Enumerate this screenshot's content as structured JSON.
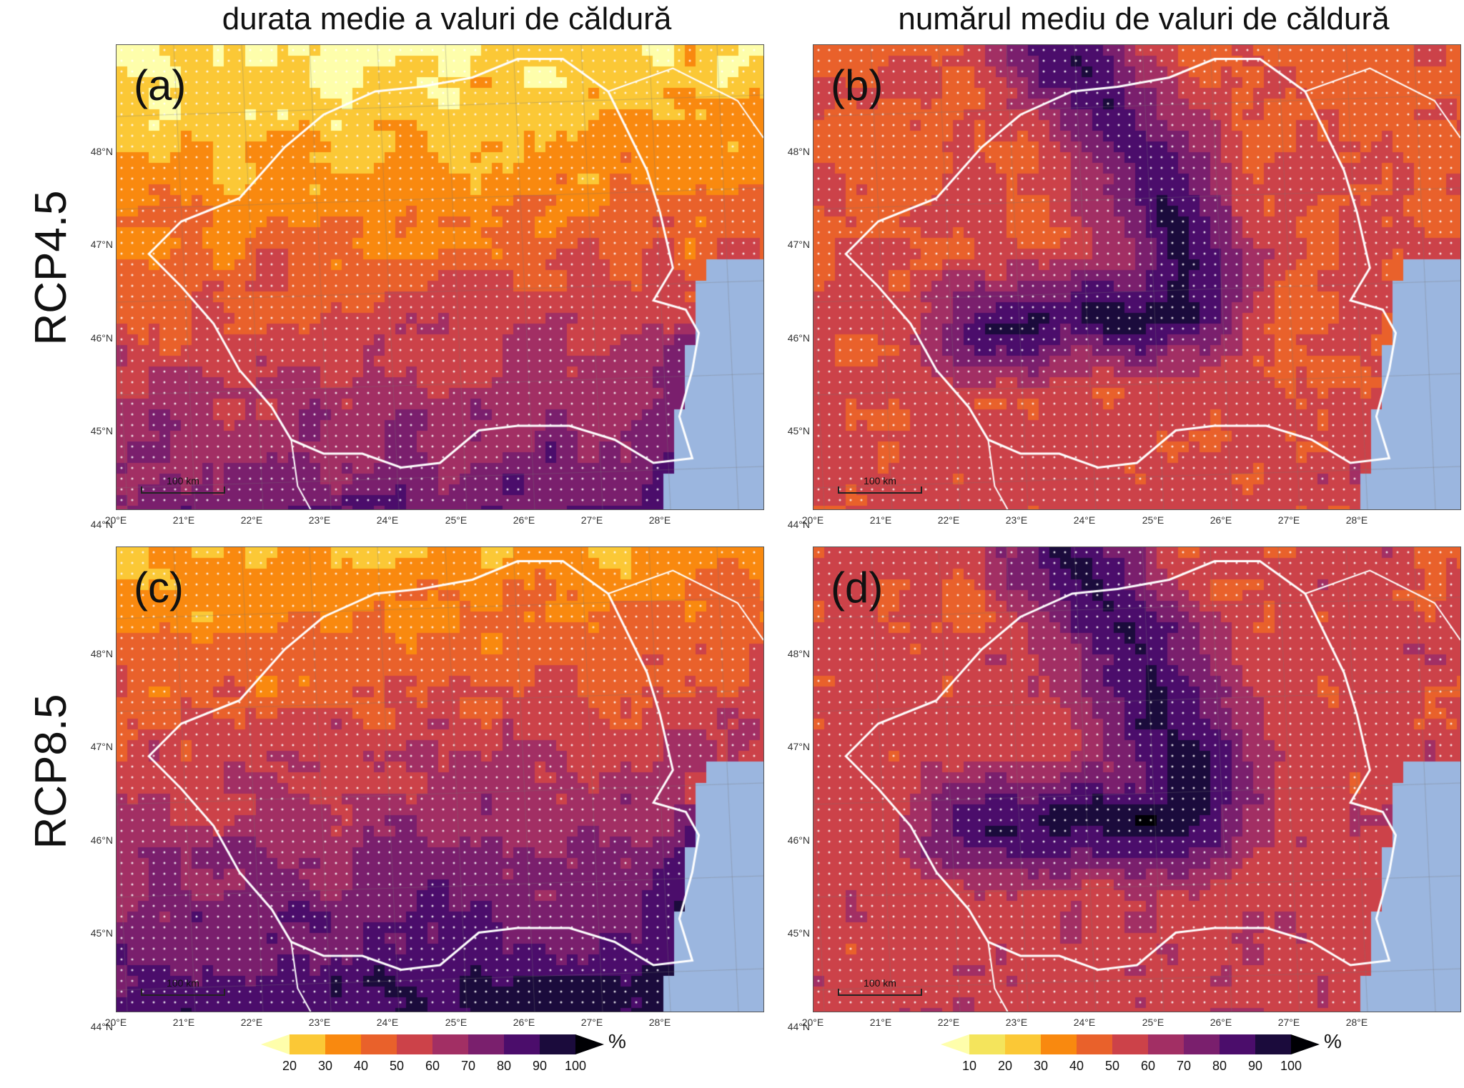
{
  "columns": {
    "left_title": "durata medie a valuri de căldură",
    "right_title": "numărul mediu de valuri de căldură"
  },
  "rows": {
    "top_label": "RCP4.5",
    "bottom_label": "RCP8.5"
  },
  "panels": [
    {
      "label": "(a)",
      "scale_label": "100 km"
    },
    {
      "label": "(b)",
      "scale_label": "100 km"
    },
    {
      "label": "(c)",
      "scale_label": "100 km"
    },
    {
      "label": "(d)",
      "scale_label": "100 km"
    }
  ],
  "axes": {
    "lat_ticks": [
      "48°N",
      "47°N",
      "46°N",
      "45°N",
      "44°N"
    ],
    "lon_ticks": [
      "20°E",
      "21°E",
      "22°E",
      "23°E",
      "24°E",
      "25°E",
      "26°E",
      "27°E",
      "28°E"
    ]
  },
  "colorbars": {
    "left": {
      "unit": "%",
      "labels": [
        "20",
        "30",
        "40",
        "50",
        "60",
        "70",
        "80",
        "90",
        "100"
      ],
      "colors": [
        "#fefeab",
        "#fbc836",
        "#f9890f",
        "#e9612b",
        "#cc4249",
        "#a22f64",
        "#7a1f6d",
        "#4b0d6b",
        "#1b0b3c",
        "#000004"
      ]
    },
    "right": {
      "unit": "%",
      "labels": [
        "10",
        "20",
        "30",
        "40",
        "50",
        "60",
        "70",
        "80",
        "90",
        "100"
      ],
      "colors": [
        "#fefeab",
        "#f4e45c",
        "#fbc836",
        "#f9890f",
        "#e9612b",
        "#cc4249",
        "#a22f64",
        "#7a1f6d",
        "#4b0d6b",
        "#1b0b3c",
        "#000004"
      ]
    }
  },
  "sea_color": "#9bb6df"
}
